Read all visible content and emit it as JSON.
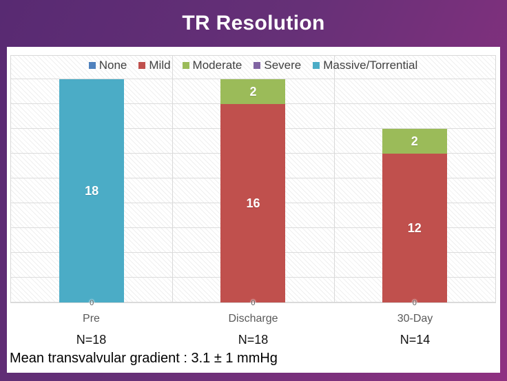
{
  "header": {
    "title": "TR Resolution"
  },
  "footnote": {
    "text": "Mean transvalvular gradient : 3.1 ± 1 mmHg"
  },
  "colors": {
    "frame_gradient_start": "#582a72",
    "frame_gradient_end": "#8f3181",
    "panel_background": "#ffffff",
    "gridline": "#d9d9d9",
    "category_label": "#595959",
    "bar_value_label": "#ffffff"
  },
  "chart_data": {
    "type": "bar",
    "stacked": true,
    "title": "TR Resolution",
    "categories": [
      "Pre",
      "Discharge",
      "30-Day"
    ],
    "n_labels": [
      "N=18",
      "N=18",
      "N=14"
    ],
    "series": [
      {
        "name": "None",
        "color": "#4F81BD",
        "values": [
          0,
          0,
          0
        ]
      },
      {
        "name": "Mild",
        "color": "#C0504D",
        "values": [
          0,
          16,
          12
        ]
      },
      {
        "name": "Moderate",
        "color": "#9BBB59",
        "values": [
          0,
          2,
          2
        ]
      },
      {
        "name": "Severe",
        "color": "#8064A2",
        "values": [
          0,
          0,
          0
        ]
      },
      {
        "name": "Massive/Torrential",
        "color": "#4BACC6",
        "values": [
          18,
          0,
          0
        ]
      }
    ],
    "baseline_zero_labels": [
      "0",
      "0",
      "0"
    ],
    "ylim": [
      0,
      20
    ],
    "grid_step": 2,
    "grid": true,
    "legend_position": "top"
  }
}
